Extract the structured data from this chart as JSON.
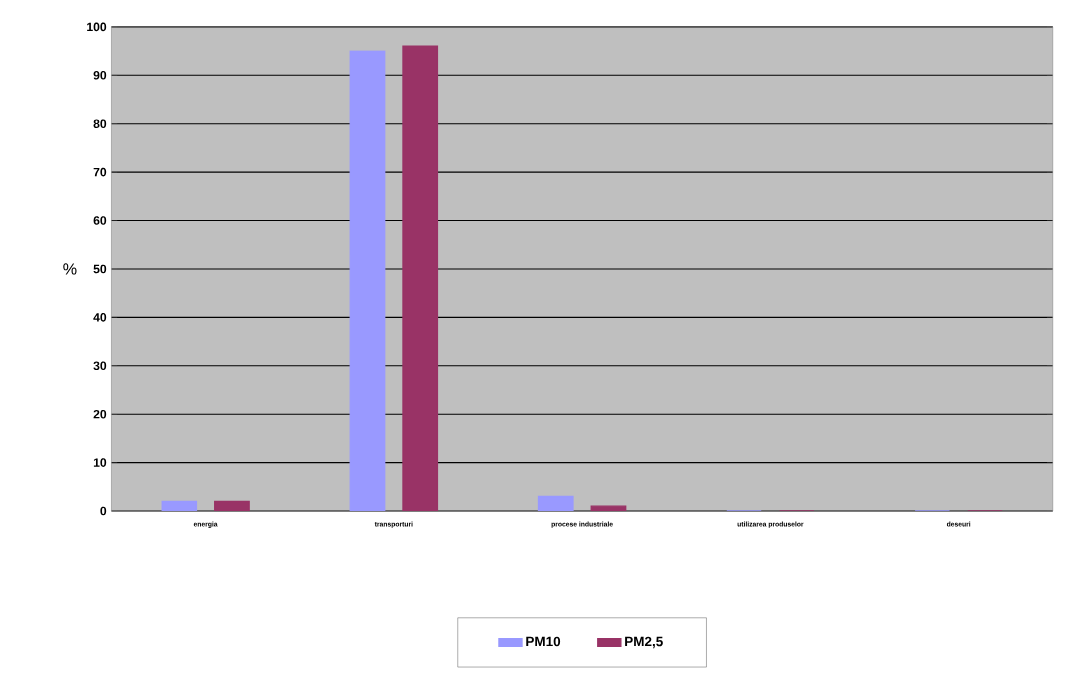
{
  "chart_data": {
    "type": "bar",
    "ylabel": "%",
    "categories": [
      "energia",
      "transporturi",
      "procese industriale",
      "utilizarea produselor",
      "deseuri"
    ],
    "series": [
      {
        "name": "PM10",
        "color": "#9999ff",
        "values": [
          2,
          95,
          3,
          0,
          0
        ]
      },
      {
        "name": "PM2,5",
        "color": "#993366",
        "values": [
          2,
          96,
          1,
          0,
          0
        ]
      }
    ],
    "ylim": [
      0,
      100
    ],
    "yticks": [
      0,
      10,
      20,
      30,
      40,
      50,
      60,
      70,
      80,
      90,
      100
    ],
    "grid": "y",
    "legend": "bottom"
  }
}
